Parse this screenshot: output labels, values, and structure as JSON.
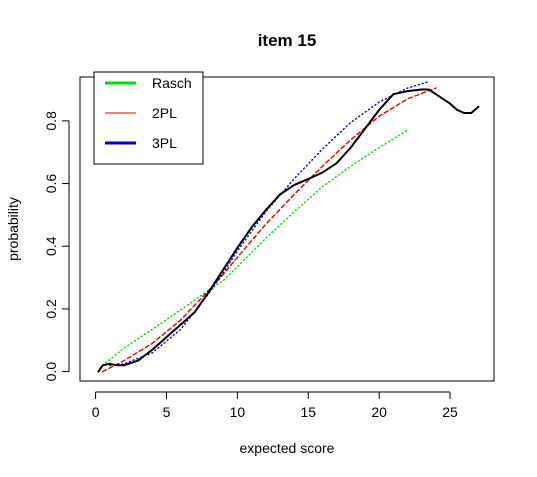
{
  "chart_data": {
    "type": "line",
    "title": "item 15",
    "xlabel": "expected score",
    "ylabel": "probability",
    "xlim": [
      -1.1,
      28.1
    ],
    "ylim": [
      -0.03,
      0.94
    ],
    "x_ticks": [
      0,
      5,
      10,
      15,
      20,
      25
    ],
    "y_ticks": [
      0.0,
      0.2,
      0.4,
      0.6,
      0.8
    ],
    "x_tick_labels": [
      "0",
      "5",
      "10",
      "15",
      "20",
      "25"
    ],
    "y_tick_labels": [
      "0.0",
      "0.2",
      "0.4",
      "0.6",
      "0.8"
    ],
    "legend_position": "top-left",
    "legend": [
      {
        "label": "Rasch",
        "color": "#00dd00"
      },
      {
        "label": "2PL",
        "color": "#dd0000"
      },
      {
        "label": "3PL",
        "color": "#0000cc"
      }
    ],
    "series": [
      {
        "name": "Rasch",
        "color": "#00dd00",
        "style": "dotted",
        "x": [
          0.5,
          2,
          4,
          6,
          8,
          9,
          10,
          12,
          14,
          16,
          18,
          20,
          22
        ],
        "y": [
          0.02,
          0.075,
          0.135,
          0.197,
          0.26,
          0.29,
          0.335,
          0.425,
          0.51,
          0.59,
          0.655,
          0.715,
          0.77
        ]
      },
      {
        "name": "2PL",
        "color": "#dd0000",
        "style": "dashed",
        "x": [
          0.5,
          2,
          4,
          6,
          8,
          9,
          10,
          12,
          14,
          16,
          18,
          20,
          22,
          24
        ],
        "y": [
          0.0,
          0.035,
          0.09,
          0.165,
          0.26,
          0.31,
          0.365,
          0.47,
          0.565,
          0.655,
          0.74,
          0.815,
          0.87,
          0.905
        ]
      },
      {
        "name": "3PL",
        "color": "#0000cc",
        "style": "dotted",
        "x": [
          1,
          2,
          4,
          6,
          8,
          9,
          10,
          12,
          14,
          16,
          18,
          20,
          22,
          23.5
        ],
        "y": [
          0.02,
          0.025,
          0.06,
          0.135,
          0.25,
          0.315,
          0.385,
          0.51,
          0.615,
          0.71,
          0.795,
          0.86,
          0.905,
          0.925
        ]
      },
      {
        "name": "",
        "color": "#000000",
        "style": "solid",
        "x": [
          0.2,
          0.5,
          1,
          1.5,
          2,
          3,
          4,
          5,
          6,
          7,
          8,
          9,
          10,
          11,
          12,
          13,
          14,
          15,
          16,
          17,
          18,
          19,
          20,
          21,
          22,
          23,
          23.5,
          24,
          24.5,
          25,
          25.5,
          26,
          26.5,
          27
        ],
        "y": [
          0.0,
          0.02,
          0.025,
          0.02,
          0.02,
          0.035,
          0.07,
          0.11,
          0.15,
          0.19,
          0.255,
          0.325,
          0.395,
          0.46,
          0.515,
          0.565,
          0.595,
          0.615,
          0.635,
          0.665,
          0.715,
          0.775,
          0.835,
          0.885,
          0.895,
          0.9,
          0.9,
          0.885,
          0.87,
          0.855,
          0.835,
          0.825,
          0.825,
          0.845
        ]
      }
    ]
  }
}
